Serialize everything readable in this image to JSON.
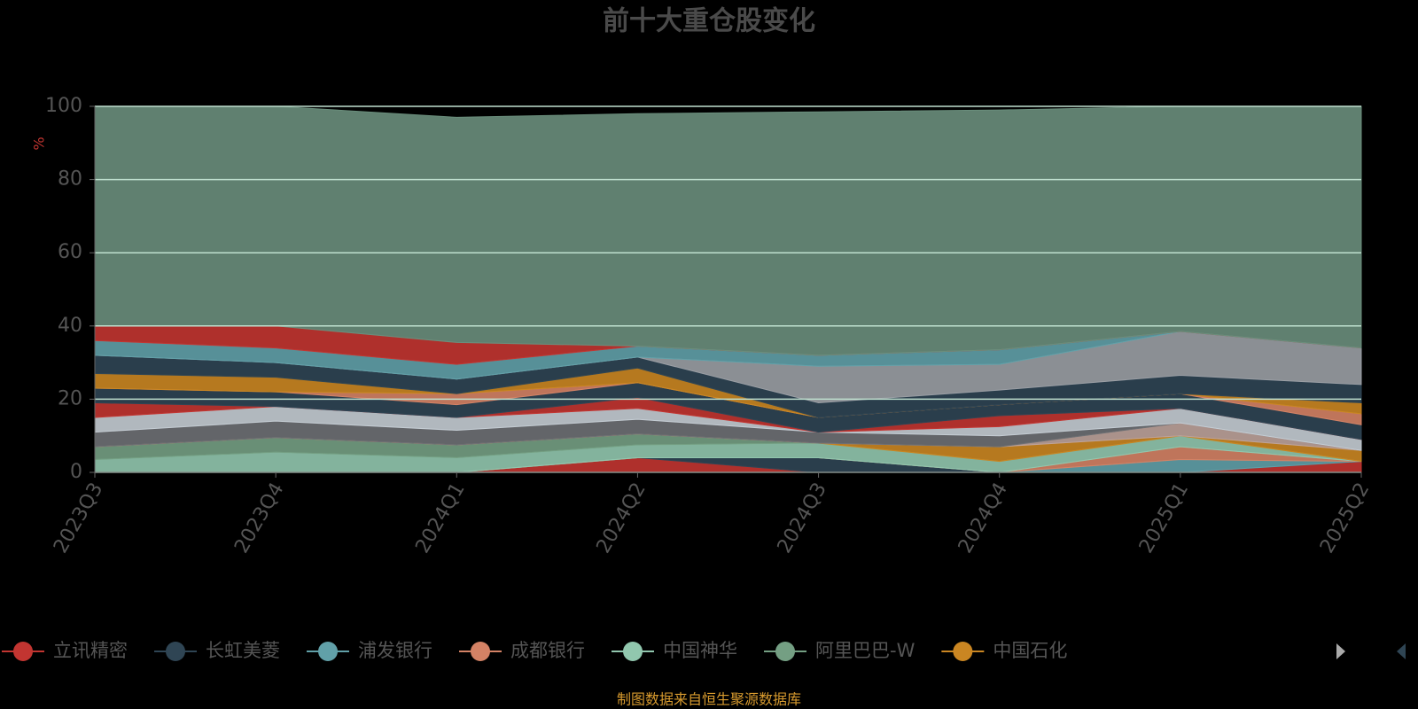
{
  "chart_data": {
    "type": "stacked-area",
    "title": "前十大重仓股变化",
    "y_label": "%",
    "categories": [
      "2023Q3",
      "2023Q4",
      "2024Q1",
      "2024Q2",
      "2024Q3",
      "2024Q4",
      "2025Q1",
      "2025Q2"
    ],
    "ylim": [
      0,
      100
    ],
    "yticks": [
      0,
      20,
      40,
      60,
      80,
      100
    ],
    "grid": true,
    "series": [
      {
        "name": "立讯精密",
        "color": "#c23531",
        "values": [
          0,
          0,
          0,
          4,
          0,
          0,
          0,
          3
        ]
      },
      {
        "name": "长虹美菱",
        "color": "#2f4554",
        "values": [
          0,
          0,
          0,
          0,
          4,
          0,
          0,
          0
        ]
      },
      {
        "name": "浦发银行",
        "color": "#61a0a8",
        "values": [
          0,
          0,
          0,
          0,
          0,
          0,
          3.5,
          0
        ]
      },
      {
        "name": "成都银行",
        "color": "#d48265",
        "values": [
          0,
          0,
          0,
          0,
          0,
          0,
          3.5,
          0
        ]
      },
      {
        "name": "中国神华",
        "color": "#91c7ae",
        "values": [
          3.5,
          5.5,
          4,
          3.5,
          4,
          3,
          3,
          0
        ]
      },
      {
        "name": "阿里巴巴-W",
        "color": "#749f83",
        "values": [
          3.5,
          4,
          3.5,
          3,
          0,
          0,
          0,
          0
        ]
      },
      {
        "name": "中国石化",
        "color": "#ca8622",
        "values": [
          0,
          0,
          0,
          0,
          0,
          4,
          0,
          3
        ]
      },
      {
        "color": "#bda29a",
        "values": [
          0,
          0,
          0,
          0,
          0,
          0,
          3.5,
          0
        ]
      },
      {
        "color": "#6e7074",
        "values": [
          4,
          4.5,
          4,
          4,
          3,
          3,
          0,
          0
        ]
      },
      {
        "color": "#c4ccd3",
        "values": [
          4,
          4,
          3.5,
          3,
          0,
          2.5,
          4,
          3
        ]
      },
      {
        "color": "#c23531",
        "values": [
          4,
          0,
          0,
          3,
          0,
          3,
          0,
          0
        ]
      },
      {
        "color": "#2f4554",
        "values": [
          4,
          4,
          3.5,
          4,
          4,
          3,
          4,
          4
        ]
      },
      {
        "color": "#d48265",
        "values": [
          0,
          0,
          3,
          0,
          0,
          0,
          0,
          3
        ]
      },
      {
        "color": "#ca8622",
        "values": [
          4,
          4,
          0,
          4,
          0,
          0,
          0,
          3
        ]
      },
      {
        "color": "#2f4554",
        "values": [
          5,
          4,
          4,
          3,
          4,
          4,
          5,
          5
        ]
      },
      {
        "color": "#9a9ea4",
        "values": [
          0,
          0,
          0,
          0,
          10,
          7,
          12,
          10
        ]
      },
      {
        "color": "#61a0a8",
        "values": [
          4,
          4,
          4,
          3,
          3,
          4,
          0,
          0
        ]
      },
      {
        "color": "#c23531",
        "values": [
          4,
          6,
          6,
          0,
          0,
          0,
          0,
          0
        ]
      },
      {
        "color": "#6a8e7c",
        "values": [
          60,
          60,
          61.5,
          63.5,
          66.5,
          65.5,
          61.5,
          66
        ]
      }
    ],
    "source": "制图数据来自恒生聚源数据库"
  }
}
